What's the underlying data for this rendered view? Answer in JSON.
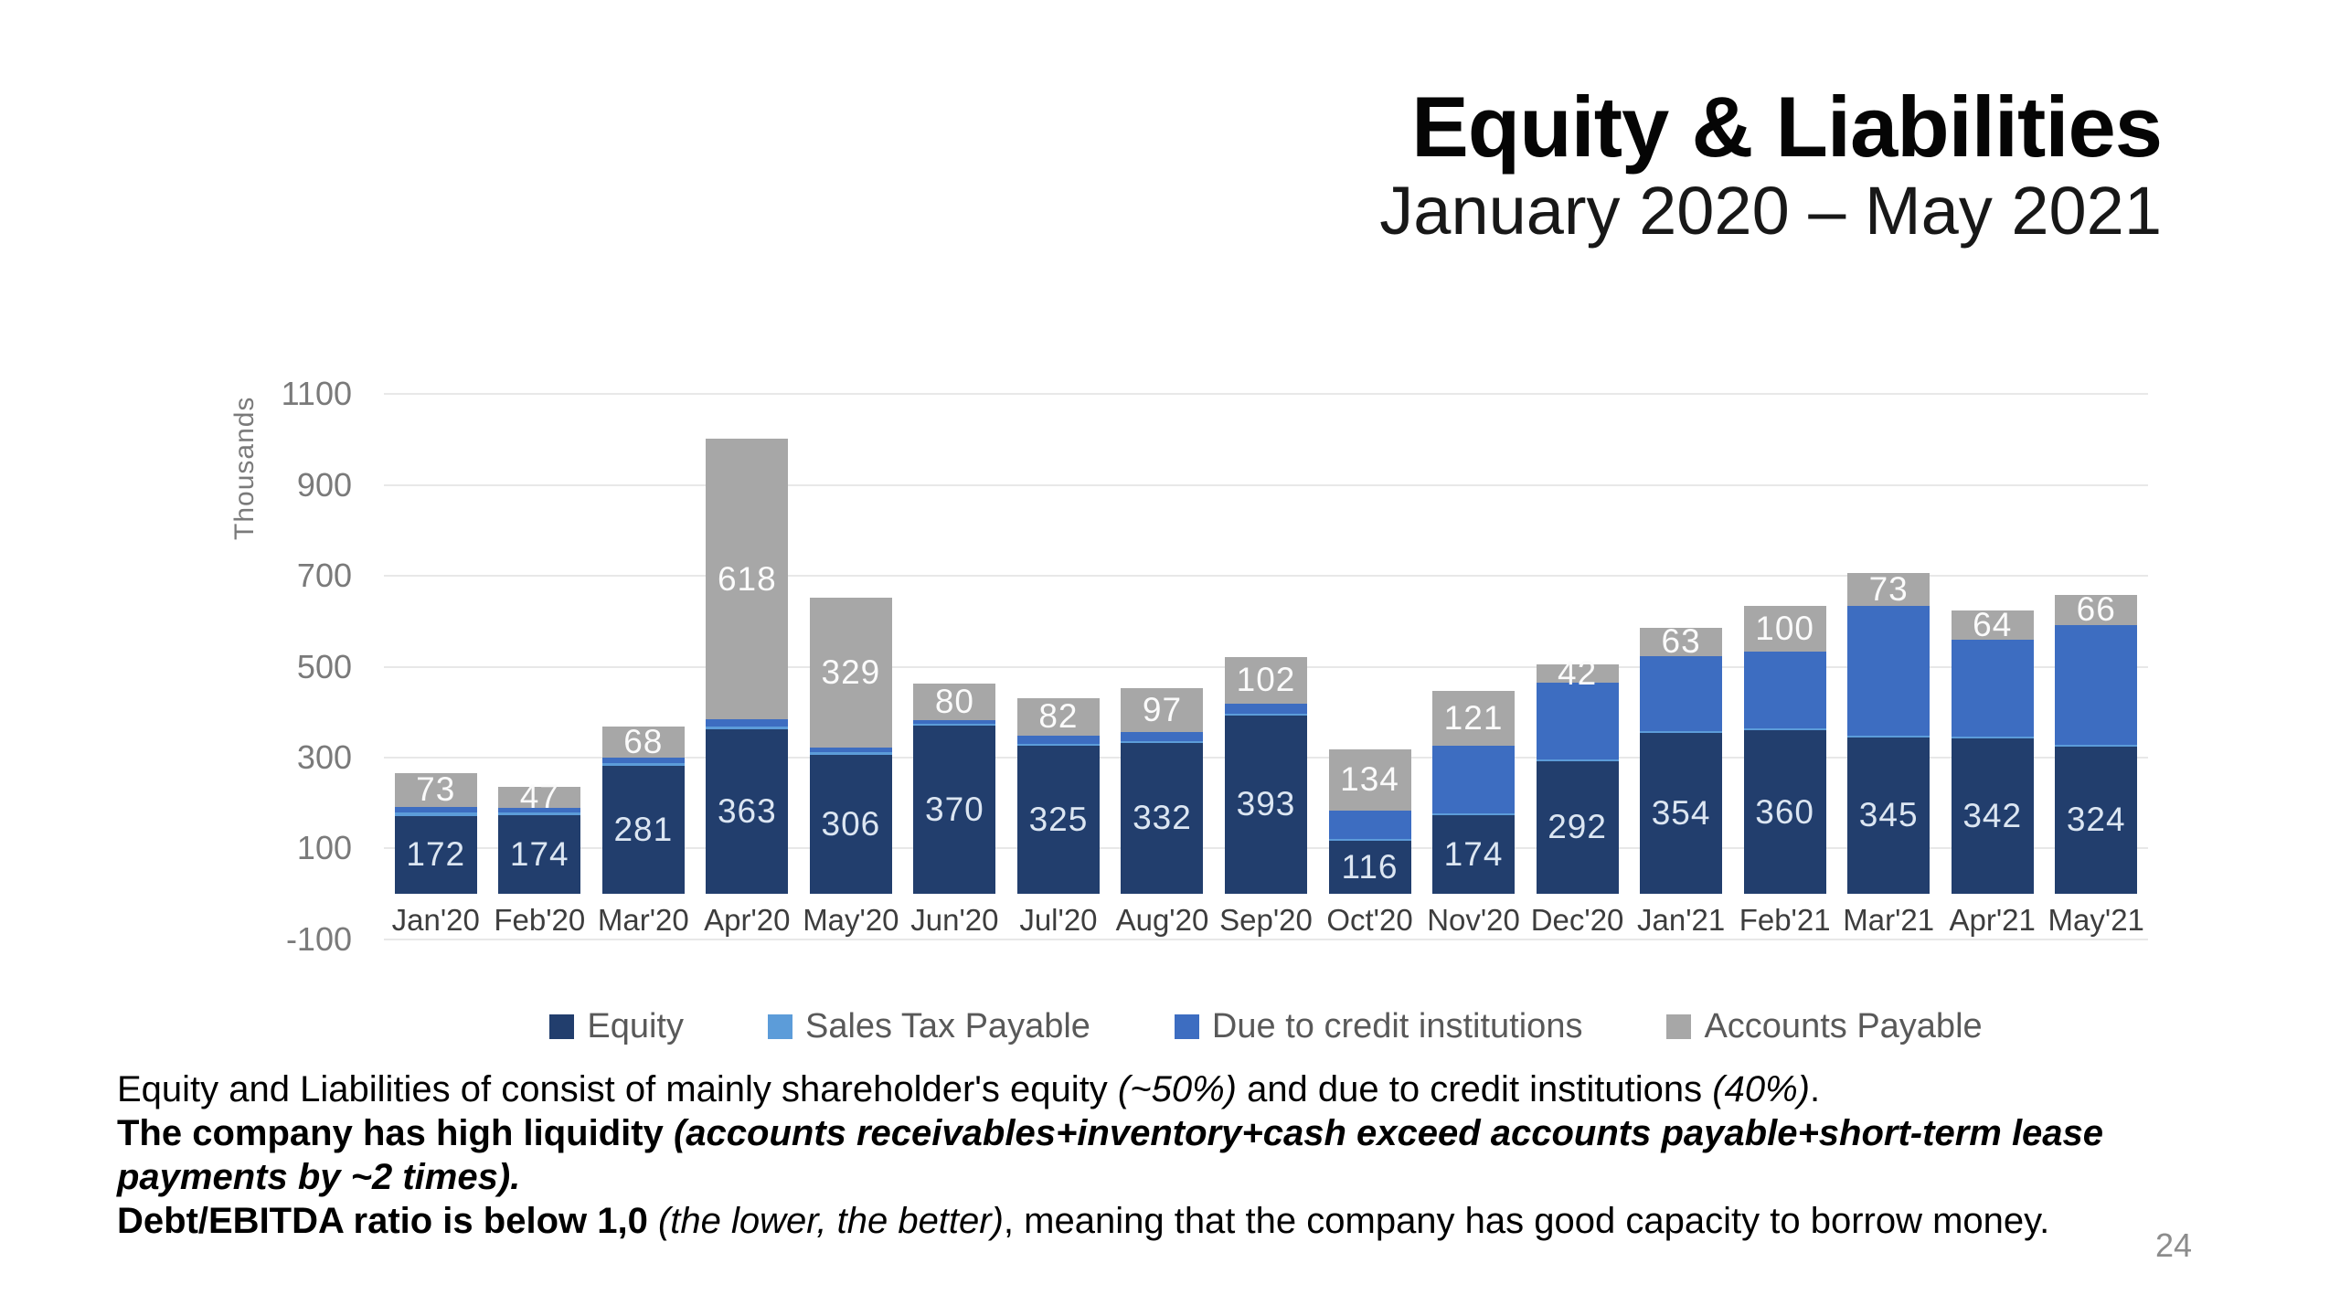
{
  "slide": {
    "title": "Equity & Liabilities",
    "subtitle": "January 2020 – May 2021",
    "page_number": "24"
  },
  "chart_data": {
    "type": "bar",
    "stacked": true,
    "title": "Equity & Liabilities, January 2020 – May 2021",
    "ylabel": "Thousands",
    "xlabel": "",
    "ylim": [
      -100,
      1100
    ],
    "y_ticks": [
      1100,
      900,
      700,
      500,
      300,
      100,
      -100
    ],
    "grid": true,
    "legend_position": "bottom",
    "categories": [
      "Jan'20",
      "Feb'20",
      "Mar'20",
      "Apr'20",
      "May'20",
      "Jun'20",
      "Jul'20",
      "Aug'20",
      "Sep'20",
      "Oct'20",
      "Nov'20",
      "Dec'20",
      "Jan'21",
      "Feb'21",
      "Mar'21",
      "Apr'21",
      "May'21"
    ],
    "series": [
      {
        "name": "Equity",
        "color": "#223E6D",
        "label_color": "#dce6f2",
        "labels_visible": true,
        "values": [
          172,
          174,
          281,
          363,
          306,
          370,
          325,
          332,
          393,
          116,
          174,
          292,
          354,
          360,
          345,
          342,
          324
        ]
      },
      {
        "name": "Sales Tax Payable",
        "color": "#5C9CD9",
        "label_color": "#ffffff",
        "labels_visible": false,
        "estimated": true,
        "values": [
          7,
          5,
          6,
          5,
          5,
          4,
          5,
          5,
          4,
          4,
          4,
          4,
          4,
          4,
          4,
          4,
          4
        ]
      },
      {
        "name": "Due to credit institutions",
        "color": "#3D6DC1",
        "label_color": "#ffffff",
        "labels_visible": false,
        "estimated": true,
        "values": [
          13,
          10,
          13,
          16,
          11,
          8,
          19,
          19,
          22,
          64,
          148,
          168,
          165,
          170,
          284,
          214,
          264
        ]
      },
      {
        "name": "Accounts Payable",
        "color": "#A7A7A7",
        "label_color": "#fbfbfb",
        "labels_visible": true,
        "values": [
          73,
          47,
          68,
          618,
          329,
          80,
          82,
          97,
          102,
          134,
          121,
          42,
          63,
          100,
          73,
          64,
          66
        ]
      }
    ]
  },
  "notes": {
    "lines": [
      {
        "segments": [
          {
            "text": "Equity and Liabilities of consist of mainly shareholder's equity ",
            "style": "regular"
          },
          {
            "text": "(~50%)",
            "style": "italic"
          },
          {
            "text": " and due to credit institutions ",
            "style": "regular"
          },
          {
            "text": "(40%)",
            "style": "italic"
          },
          {
            "text": ".",
            "style": "regular"
          }
        ]
      },
      {
        "segments": [
          {
            "text": "The company has high liquidity ",
            "style": "bold"
          },
          {
            "text": "(accounts receivables+inventory+cash exceed accounts payable+short-term lease payments by ~2 times).",
            "style": "bold-italic"
          }
        ]
      },
      {
        "segments": [
          {
            "text": "Debt/EBITDA ratio is below 1,0 ",
            "style": "bold"
          },
          {
            "text": "(the lower, the better)",
            "style": "italic"
          },
          {
            "text": ", meaning that the company has good capacity to borrow money.",
            "style": "regular"
          }
        ]
      }
    ]
  }
}
